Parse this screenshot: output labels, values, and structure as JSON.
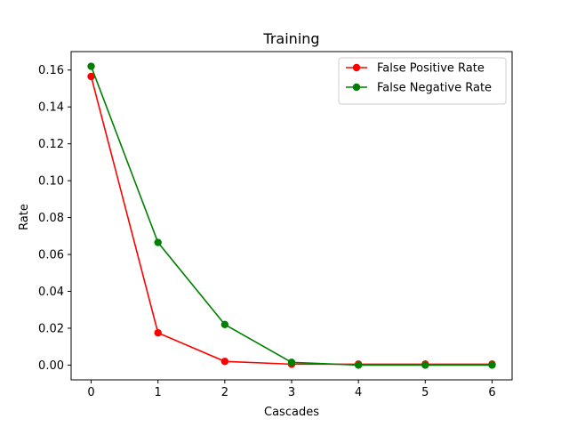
{
  "chart_data": {
    "type": "line",
    "title": "Training",
    "xlabel": "Cascades",
    "ylabel": "Rate",
    "x": [
      0,
      1,
      2,
      3,
      4,
      5,
      6
    ],
    "xlim": [
      -0.3,
      6.3
    ],
    "ylim": [
      -0.008,
      0.17
    ],
    "xticks": [
      "0",
      "1",
      "2",
      "3",
      "4",
      "5",
      "6"
    ],
    "yticks": [
      "0.00",
      "0.02",
      "0.04",
      "0.06",
      "0.08",
      "0.10",
      "0.12",
      "0.14",
      "0.16"
    ],
    "grid": false,
    "legend_position": "top-right",
    "series": [
      {
        "name": "False Positive Rate",
        "color": "#ff0000",
        "marker": "circle",
        "values": [
          0.1565,
          0.0175,
          0.002,
          0.0005,
          0.0005,
          0.0005,
          0.0005
        ]
      },
      {
        "name": "False Negative Rate",
        "color": "#008000",
        "marker": "circle",
        "values": [
          0.162,
          0.0665,
          0.022,
          0.0015,
          0.0,
          0.0,
          0.0
        ]
      }
    ]
  }
}
